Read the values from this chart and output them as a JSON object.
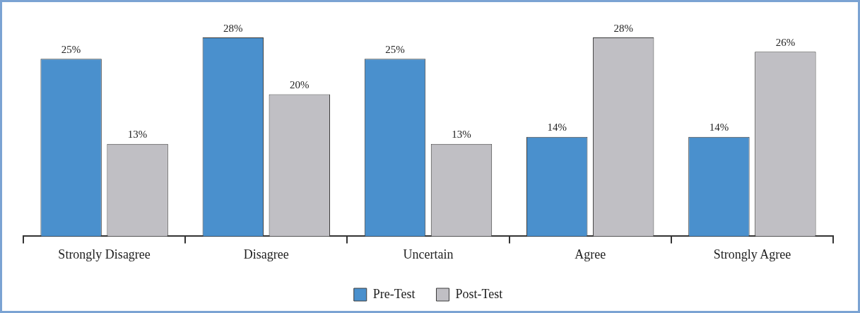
{
  "chart_data": {
    "type": "bar",
    "categories": [
      "Strongly Disagree",
      "Disagree",
      "Uncertain",
      "Agree",
      "Strongly Agree"
    ],
    "series": [
      {
        "name": "Pre-Test",
        "color": "#4a90cd",
        "values": [
          25,
          28,
          25,
          14,
          14
        ],
        "value_labels": [
          "25%",
          "28%",
          "25%",
          "14%",
          "14%"
        ]
      },
      {
        "name": "Post-Test",
        "color": "#c0bfc4",
        "values": [
          13,
          20,
          13,
          28,
          26
        ],
        "value_labels": [
          "13%",
          "20%",
          "13%",
          "28%",
          "26%"
        ]
      }
    ],
    "grid": false,
    "legend": "bottom"
  }
}
